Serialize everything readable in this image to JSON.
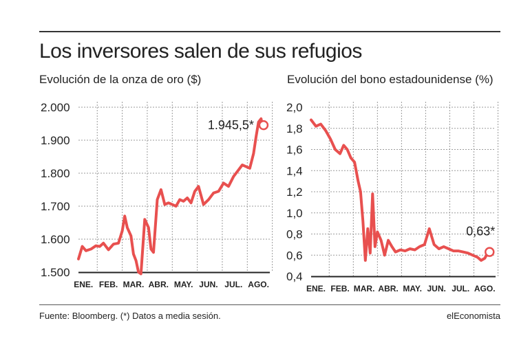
{
  "headline": "Los inversores salen de sus refugios",
  "footer": {
    "source": "Fuente: Bloomberg. (*) Datos a media sesión.",
    "brand": "elEconomista"
  },
  "colors": {
    "line": "#e8504f",
    "grid": "#9a9a9a",
    "text": "#222222"
  },
  "chart_data": [
    {
      "type": "line",
      "title": "Evolución de la onza de oro ($)",
      "categories": [
        "ENE.",
        "FEB.",
        "MAR.",
        "ABR.",
        "MAY.",
        "JUN.",
        "JUL.",
        "AGO."
      ],
      "yticks": [
        "1.500",
        "1.600",
        "1.700",
        "1.800",
        "1.900",
        "2.000"
      ],
      "ylim": [
        1500,
        2000
      ],
      "xlim": [
        0,
        7.65
      ],
      "grid": true,
      "annotation": {
        "label": "1.945,5*",
        "x": 7.4,
        "y": 1945.5
      },
      "x": [
        0,
        0.15,
        0.3,
        0.5,
        0.7,
        0.85,
        1.0,
        1.2,
        1.4,
        1.6,
        1.75,
        1.85,
        1.95,
        2.1,
        2.2,
        2.3,
        2.4,
        2.5,
        2.65,
        2.8,
        2.9,
        3.0,
        3.15,
        3.3,
        3.45,
        3.6,
        3.75,
        3.9,
        4.05,
        4.2,
        4.35,
        4.5,
        4.65,
        4.8,
        5.0,
        5.2,
        5.4,
        5.6,
        5.8,
        6.0,
        6.2,
        6.4,
        6.55,
        6.7,
        6.85,
        7.0,
        7.1,
        7.2,
        7.3,
        7.35
      ],
      "values": [
        1540,
        1578,
        1565,
        1570,
        1580,
        1578,
        1588,
        1568,
        1585,
        1588,
        1625,
        1670,
        1635,
        1610,
        1555,
        1535,
        1500,
        1495,
        1660,
        1635,
        1570,
        1560,
        1720,
        1750,
        1705,
        1710,
        1705,
        1700,
        1720,
        1715,
        1725,
        1710,
        1745,
        1760,
        1705,
        1720,
        1740,
        1745,
        1770,
        1760,
        1790,
        1810,
        1825,
        1820,
        1815,
        1860,
        1910,
        1955,
        1965,
        1945.5
      ]
    },
    {
      "type": "line",
      "title": "Evolución del bono estadounidense (%)",
      "categories": [
        "ENE.",
        "FEB.",
        "MAR.",
        "ABR.",
        "MAY.",
        "JUN.",
        "JUL.",
        "AGO."
      ],
      "yticks": [
        "0,4",
        "0,6",
        "0,8",
        "1,0",
        "1,2",
        "1,4",
        "1,6",
        "1,8",
        "2,0"
      ],
      "ylim": [
        0.4,
        2.0
      ],
      "xlim": [
        0,
        7.65
      ],
      "grid": true,
      "annotation": {
        "label": "0,63*",
        "x": 7.4,
        "y": 0.63
      },
      "x": [
        0,
        0.2,
        0.4,
        0.6,
        0.8,
        1.0,
        1.2,
        1.35,
        1.5,
        1.65,
        1.8,
        1.95,
        2.05,
        2.15,
        2.25,
        2.35,
        2.45,
        2.55,
        2.65,
        2.75,
        2.9,
        3.05,
        3.2,
        3.35,
        3.5,
        3.7,
        3.9,
        4.1,
        4.3,
        4.5,
        4.7,
        4.9,
        5.1,
        5.3,
        5.5,
        5.7,
        5.9,
        6.1,
        6.3,
        6.5,
        6.7,
        6.9,
        7.05,
        7.2,
        7.35
      ],
      "values": [
        1.88,
        1.82,
        1.84,
        1.78,
        1.7,
        1.6,
        1.56,
        1.64,
        1.6,
        1.52,
        1.48,
        1.3,
        1.2,
        0.92,
        0.55,
        0.85,
        0.62,
        1.18,
        0.68,
        0.82,
        0.74,
        0.6,
        0.74,
        0.68,
        0.63,
        0.65,
        0.64,
        0.66,
        0.65,
        0.68,
        0.7,
        0.85,
        0.7,
        0.66,
        0.68,
        0.66,
        0.64,
        0.64,
        0.63,
        0.62,
        0.6,
        0.58,
        0.55,
        0.57,
        0.63
      ]
    }
  ]
}
